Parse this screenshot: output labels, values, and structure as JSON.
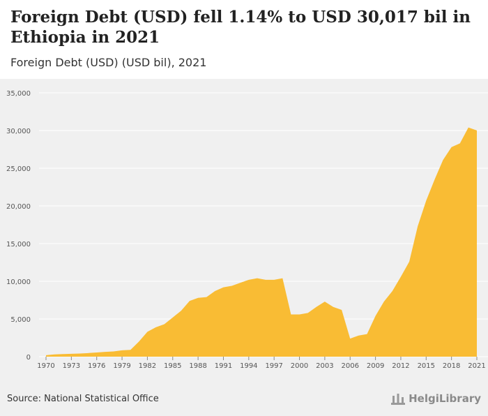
{
  "header": {
    "title": "Foreign Debt (USD) fell 1.14% to USD 30,017 bil in Ethiopia in 2021",
    "subtitle": "Foreign Debt (USD) (USD bil), 2021"
  },
  "footer": {
    "source": "Source: National Statistical Office",
    "logo_text": "HelgiLibrary"
  },
  "colors": {
    "area": "#f9bc34",
    "plot_bg": "#f0f0f0",
    "grid": "#ffffff"
  },
  "chart_data": {
    "type": "area",
    "title": "Foreign Debt (USD) fell 1.14% to USD 30,017 bil in Ethiopia in 2021",
    "subtitle": "Foreign Debt (USD) (USD bil), 2021",
    "xlabel": "",
    "ylabel": "",
    "ylim": [
      0,
      35000
    ],
    "yticks": [
      0,
      5000,
      10000,
      15000,
      20000,
      25000,
      30000,
      35000
    ],
    "ytick_labels": [
      "0",
      "5,000",
      "10,000",
      "15,000",
      "20,000",
      "25,000",
      "30,000",
      "35,000"
    ],
    "xtick_labels": [
      "1970",
      "1973",
      "1976",
      "1979",
      "1982",
      "1985",
      "1988",
      "1991",
      "1994",
      "1997",
      "2000",
      "2003",
      "2006",
      "2009",
      "2012",
      "2015",
      "2018",
      "2021"
    ],
    "grid": true,
    "x": [
      1970,
      1971,
      1972,
      1973,
      1974,
      1975,
      1976,
      1977,
      1978,
      1979,
      1980,
      1981,
      1982,
      1983,
      1984,
      1985,
      1986,
      1987,
      1988,
      1989,
      1990,
      1991,
      1992,
      1993,
      1994,
      1995,
      1996,
      1997,
      1998,
      1999,
      2000,
      2001,
      2002,
      2003,
      2004,
      2005,
      2006,
      2007,
      2008,
      2009,
      2010,
      2011,
      2012,
      2013,
      2014,
      2015,
      2016,
      2017,
      2018,
      2019,
      2020,
      2021
    ],
    "series": [
      {
        "values": [
          200,
          300,
          350,
          380,
          420,
          480,
          560,
          640,
          700,
          850,
          900,
          2000,
          3300,
          3900,
          4300,
          5200,
          6100,
          7400,
          7800,
          7900,
          8700,
          9200,
          9400,
          9800,
          10200,
          10400,
          10200,
          10200,
          10400,
          5600,
          5600,
          5800,
          6600,
          7300,
          6600,
          6200,
          2400,
          2800,
          3000,
          5400,
          7300,
          8700,
          10600,
          12600,
          17300,
          20700,
          23500,
          26100,
          27800,
          28300,
          30400,
          30017
        ]
      }
    ]
  }
}
